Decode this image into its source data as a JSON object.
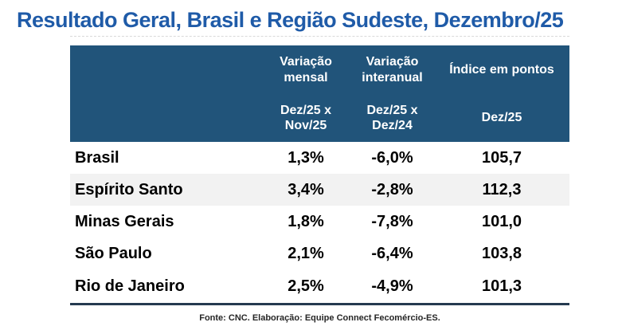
{
  "page": {
    "title": "Resultado Geral, Brasil e Região Sudeste, Dezembro/25",
    "footer": "Fonte: CNC.  Elaboração: Equipe Connect Fecomércio-ES."
  },
  "colors": {
    "title_blue": "#1F5BA8",
    "header_bg": "#21547A",
    "header_text": "#FFFFFF",
    "alt_row_bg": "#F2F2F2",
    "bottom_rule": "#253A50",
    "body_text": "#000000"
  },
  "table": {
    "columns": [
      {
        "label": "",
        "sub": ""
      },
      {
        "label": "Variação mensal",
        "sub": "Dez/25 x Nov/25"
      },
      {
        "label": "Variação interanual",
        "sub": "Dez/25 x Dez/24"
      },
      {
        "label": "Índice em pontos",
        "sub": "Dez/25"
      }
    ],
    "rows": [
      {
        "name": "Brasil",
        "monthly": "1,3%",
        "yearly": "-6,0%",
        "index": "105,7"
      },
      {
        "name": "Espírito Santo",
        "monthly": "3,4%",
        "yearly": "-2,8%",
        "index": "112,3"
      },
      {
        "name": "Minas Gerais",
        "monthly": "1,8%",
        "yearly": "-7,8%",
        "index": "101,0"
      },
      {
        "name": "São Paulo",
        "monthly": "2,1%",
        "yearly": "-6,4%",
        "index": "103,8"
      },
      {
        "name": "Rio de Janeiro",
        "monthly": "2,5%",
        "yearly": "-4,9%",
        "index": "101,3"
      }
    ]
  }
}
